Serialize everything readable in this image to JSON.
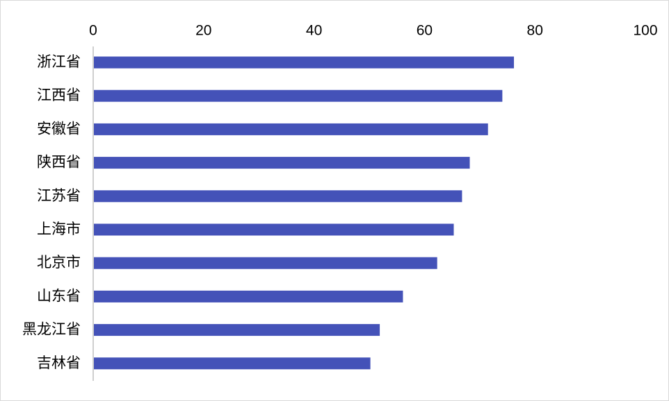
{
  "chart_data": {
    "type": "bar",
    "orientation": "horizontal",
    "categories": [
      "浙江省",
      "江西省",
      "安徽省",
      "陕西省",
      "江苏省",
      "上海市",
      "北京市",
      "山东省",
      "黑龙江省",
      "吉林省"
    ],
    "values": [
      76.2,
      74.1,
      71.5,
      68.2,
      66.8,
      65.3,
      62.3,
      56.1,
      51.9,
      50.2
    ],
    "xlim": [
      0,
      100
    ],
    "xticks": [
      "0",
      "20",
      "40",
      "60",
      "80",
      "100"
    ],
    "tick_values": [
      0,
      20,
      40,
      60,
      80,
      100
    ],
    "x_axis_position": "top",
    "grid": false,
    "bar_color": "#4452b8",
    "axis_color": "#bfbfbf"
  }
}
